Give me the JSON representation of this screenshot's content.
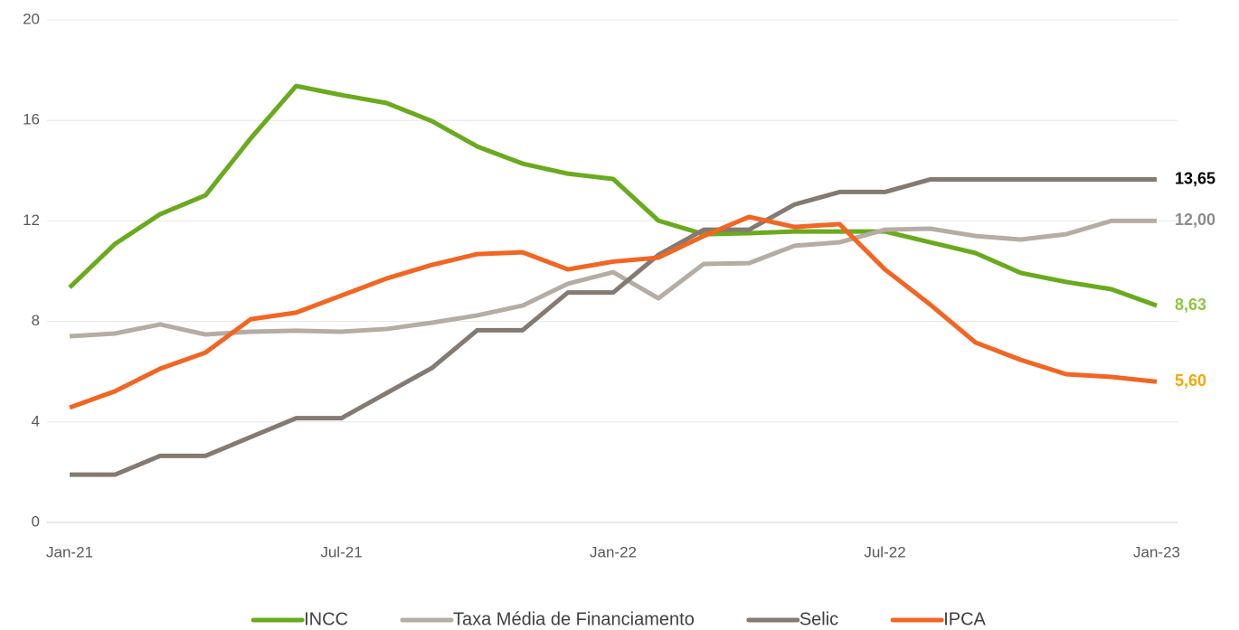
{
  "chart_data": {
    "type": "line",
    "categories": [
      "Jan-21",
      null,
      null,
      null,
      null,
      null,
      "Jul-21",
      null,
      null,
      null,
      null,
      null,
      "Jan-22",
      null,
      null,
      null,
      null,
      null,
      "Jul-22",
      null,
      null,
      null,
      null,
      null,
      "Jan-23"
    ],
    "ylim": [
      0,
      20
    ],
    "yticks": [
      0,
      4,
      8,
      12,
      16,
      20
    ],
    "grid": true,
    "legend": "bottom",
    "series": [
      {
        "name": "INCC",
        "color": "#6aaa1e",
        "label_color": "#8dc63f",
        "values": [
          9.35,
          11.08,
          12.27,
          13.02,
          15.29,
          17.37,
          17.01,
          16.69,
          15.97,
          14.96,
          14.28,
          13.88,
          13.67,
          12.01,
          11.47,
          11.51,
          11.58,
          11.58,
          11.58,
          11.15,
          10.72,
          9.93,
          9.57,
          9.28,
          8.63
        ],
        "value_labels": [
          null,
          null,
          null,
          null,
          null,
          null,
          null,
          null,
          null,
          null,
          null,
          null,
          null,
          null,
          null,
          null,
          null,
          null,
          null,
          null,
          null,
          null,
          null,
          null,
          "8,63"
        ]
      },
      {
        "name": "Taxa Média de Financiamento",
        "color": "#b5aca3",
        "label_color": "#8c8c8c",
        "values": [
          7.41,
          7.52,
          7.88,
          7.48,
          7.59,
          7.63,
          7.59,
          7.7,
          7.95,
          8.24,
          8.63,
          9.5,
          9.96,
          8.92,
          10.29,
          10.32,
          11.01,
          11.15,
          11.65,
          11.69,
          11.4,
          11.26,
          11.47,
          12.0,
          12.0
        ],
        "value_labels": [
          null,
          null,
          null,
          null,
          null,
          null,
          null,
          null,
          null,
          null,
          null,
          null,
          null,
          null,
          null,
          null,
          null,
          null,
          null,
          null,
          null,
          null,
          null,
          null,
          "12,00"
        ]
      },
      {
        "name": "Selic",
        "color": "#857a72",
        "label_color": "#000000",
        "values": [
          1.9,
          1.9,
          2.65,
          2.65,
          3.4,
          4.15,
          4.15,
          5.15,
          6.15,
          7.65,
          7.65,
          9.15,
          9.15,
          10.65,
          11.65,
          11.65,
          12.65,
          13.15,
          13.15,
          13.65,
          13.65,
          13.65,
          13.65,
          13.65,
          13.65
        ],
        "value_labels": [
          null,
          null,
          null,
          null,
          null,
          null,
          null,
          null,
          null,
          null,
          null,
          null,
          null,
          null,
          null,
          null,
          null,
          null,
          null,
          null,
          null,
          null,
          null,
          null,
          "13,65"
        ]
      },
      {
        "name": "IPCA",
        "color": "#f26522",
        "label_color": "#f7a600",
        "values": [
          4.57,
          5.22,
          6.12,
          6.76,
          8.09,
          8.35,
          9.03,
          9.71,
          10.25,
          10.68,
          10.75,
          10.07,
          10.38,
          10.54,
          11.4,
          12.16,
          11.76,
          11.87,
          10.07,
          8.67,
          7.16,
          6.47,
          5.9,
          5.79,
          5.6
        ],
        "value_labels": [
          null,
          null,
          null,
          null,
          null,
          null,
          null,
          null,
          null,
          null,
          null,
          null,
          null,
          null,
          null,
          null,
          null,
          null,
          null,
          null,
          null,
          null,
          null,
          null,
          "5,60"
        ]
      }
    ]
  }
}
